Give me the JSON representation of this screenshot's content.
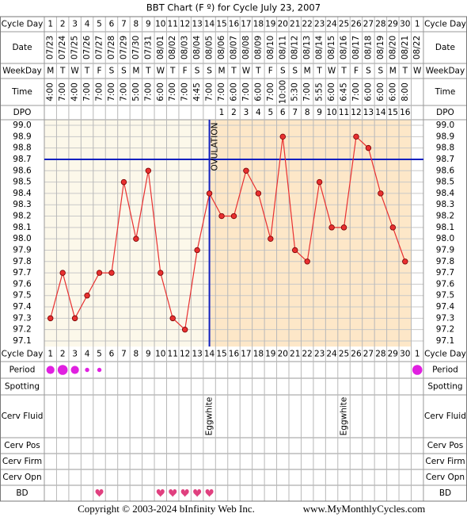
{
  "chart_data": {
    "type": "line",
    "title": "BBT Chart (F º) for Cycle July 23, 2007",
    "row_labels": [
      "Cycle Day",
      "Date",
      "WeekDay",
      "Time",
      "DPO",
      "Period",
      "Spotting",
      "Cerv Fluid",
      "Cerv Pos",
      "Cerv Firm",
      "Cerv Opn",
      "BD"
    ],
    "x": [
      1,
      2,
      3,
      4,
      5,
      6,
      7,
      8,
      9,
      10,
      11,
      12,
      13,
      14,
      15,
      16,
      17,
      18,
      19,
      20,
      21,
      22,
      23,
      24,
      25,
      26,
      27,
      28,
      29,
      30,
      1
    ],
    "dates": [
      "07/23",
      "07/24",
      "07/25",
      "07/26",
      "07/27",
      "07/28",
      "07/29",
      "07/30",
      "07/31",
      "08/01",
      "08/02",
      "08/03",
      "08/04",
      "08/05",
      "08/06",
      "08/07",
      "08/08",
      "08/09",
      "08/10",
      "08/11",
      "08/12",
      "08/13",
      "08/14",
      "08/15",
      "08/16",
      "08/17",
      "08/18",
      "08/19",
      "08/20",
      "08/21",
      "08/22"
    ],
    "weekdays": [
      "M",
      "T",
      "W",
      "T",
      "F",
      "S",
      "S",
      "M",
      "T",
      "W",
      "T",
      "F",
      "S",
      "S",
      "M",
      "T",
      "W",
      "T",
      "F",
      "S",
      "S",
      "M",
      "T",
      "W",
      "T",
      "F",
      "S",
      "S",
      "M",
      "T",
      "W"
    ],
    "times": [
      "4:00",
      "7:00",
      "4:00",
      "7:00",
      "7:00",
      "7:00",
      "7:00",
      "5:00",
      "7:00",
      "6:00",
      "7:00",
      "7:00",
      "4:45",
      "7:00",
      "7:00",
      "6:00",
      "7:00",
      "6:00",
      "7:00",
      "10:00",
      "5:30",
      "7:00",
      "5:55",
      "6:00",
      "6:45",
      "7:00",
      "6:00",
      "6:00",
      "6:00",
      "8:00",
      null
    ],
    "dpo": [
      null,
      null,
      null,
      null,
      null,
      null,
      null,
      null,
      null,
      null,
      null,
      null,
      null,
      null,
      1,
      2,
      3,
      4,
      5,
      6,
      7,
      8,
      9,
      10,
      11,
      12,
      13,
      14,
      15,
      16,
      null
    ],
    "values": [
      97.3,
      97.7,
      97.3,
      97.5,
      97.7,
      97.7,
      98.5,
      98.0,
      98.6,
      97.7,
      97.3,
      97.2,
      97.9,
      98.4,
      98.2,
      98.2,
      98.6,
      98.4,
      98.0,
      98.9,
      97.9,
      97.8,
      98.5,
      98.1,
      98.1,
      98.9,
      98.8,
      98.4,
      98.1,
      97.8,
      null
    ],
    "color": "#e83030",
    "ylim": [
      97.1,
      99.0
    ],
    "yticks": [
      {
        "value": 99.0,
        "label": "99.0"
      },
      98.9,
      98.8,
      98.7,
      98.6,
      98.5,
      98.4,
      98.3,
      98.2,
      98.1,
      {
        "value": 98.0,
        "label": "98.0"
      },
      97.9,
      97.8,
      97.7,
      97.6,
      97.5,
      97.4,
      97.3,
      97.2,
      97.1
    ],
    "grid": true,
    "coverline": 98.7,
    "ovulation_day": 14,
    "ovulation_label": "OVULATION",
    "period": [
      3,
      4,
      3,
      1,
      1,
      null,
      null,
      null,
      null,
      null,
      null,
      null,
      null,
      null,
      null,
      null,
      null,
      null,
      null,
      null,
      null,
      null,
      null,
      null,
      null,
      null,
      null,
      null,
      null,
      null,
      4
    ],
    "cervical_fluid": [
      null,
      null,
      null,
      null,
      null,
      null,
      null,
      null,
      null,
      null,
      null,
      null,
      null,
      "Eggwhite",
      null,
      null,
      null,
      null,
      null,
      null,
      null,
      null,
      null,
      null,
      "Eggwhite",
      null,
      null,
      null,
      null,
      null,
      null
    ],
    "bd": [
      5,
      10,
      11,
      12,
      13,
      14
    ],
    "copyright": "Copyright © 2003-2024 bInfinity Web Inc.",
    "website": "www.MyMonthlyCycles.com"
  }
}
